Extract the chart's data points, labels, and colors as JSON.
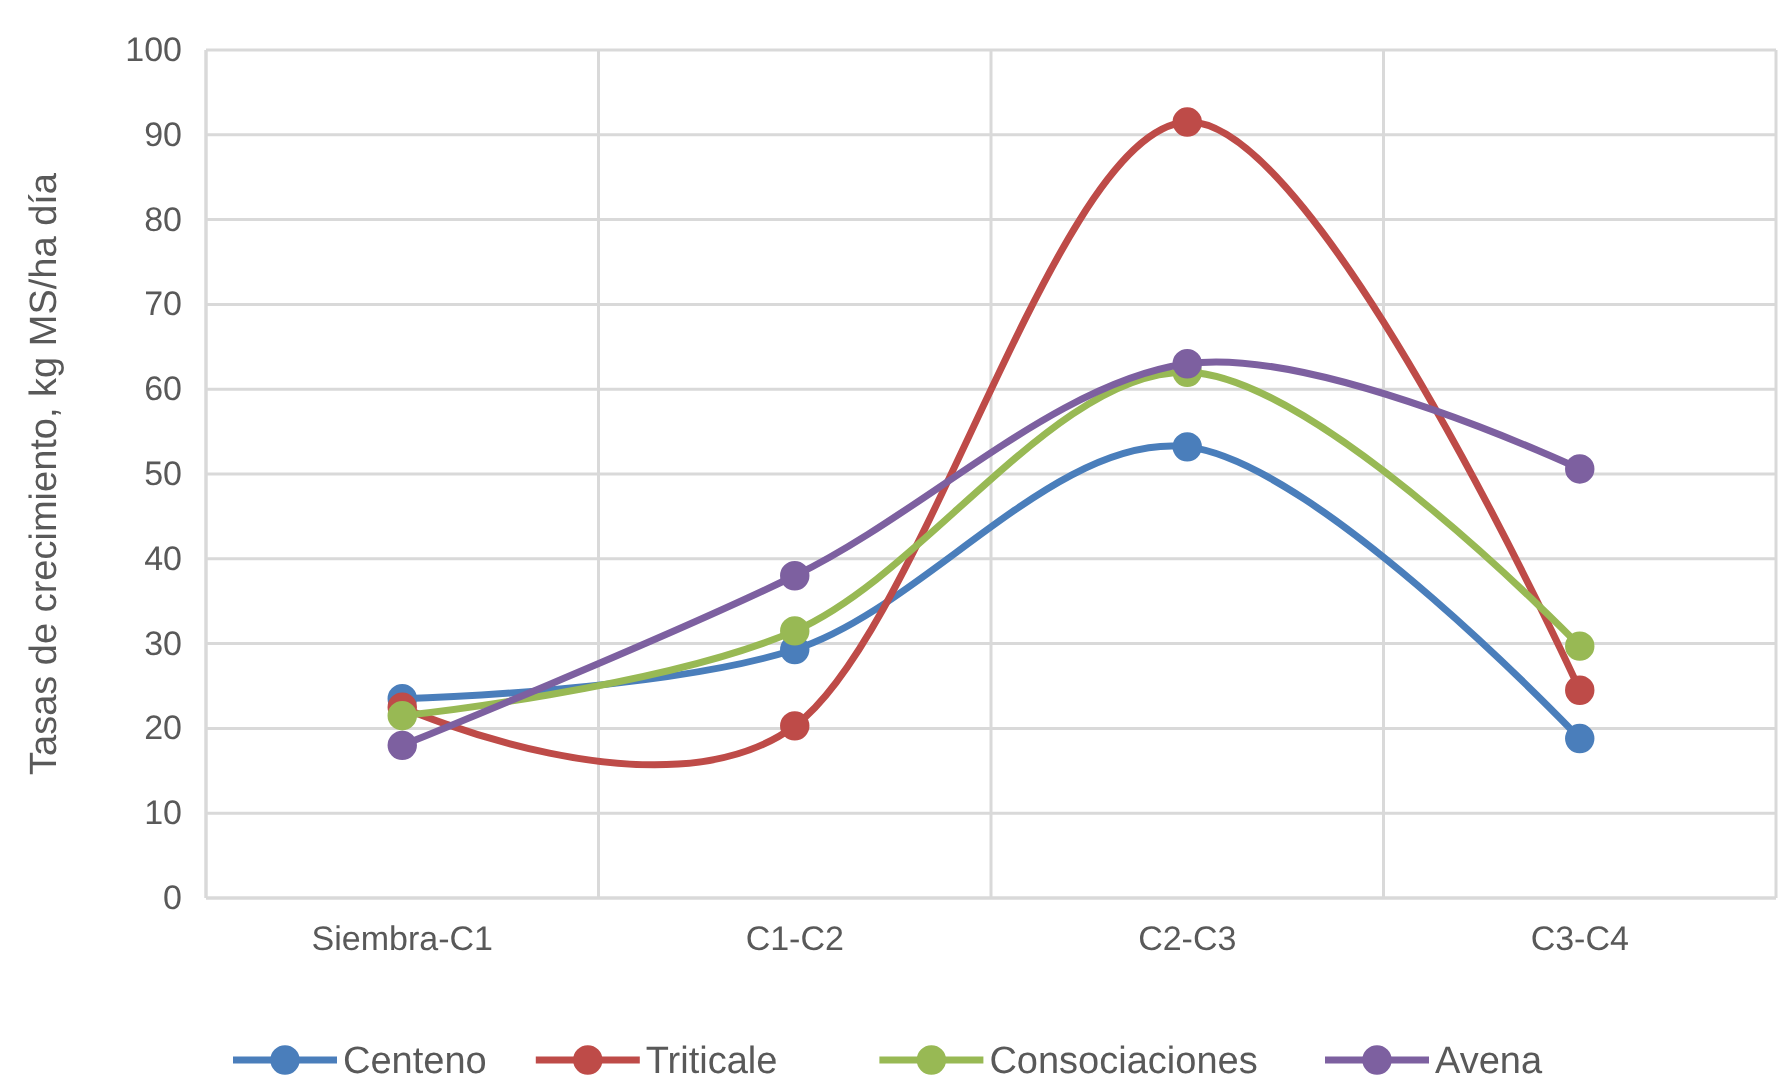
{
  "chart_data": {
    "type": "line",
    "ylabel": "Tasas de crecimiento, kg MS/ha día",
    "categories": [
      "Siembra-C1",
      "C1-C2",
      "C2-C3",
      "C3-C4"
    ],
    "series": [
      {
        "name": "Centeno",
        "color": "#4a7ebb",
        "values": [
          23.5,
          29.3,
          53.2,
          18.8
        ]
      },
      {
        "name": "Triticale",
        "color": "#be4b48",
        "values": [
          22.5,
          20.3,
          91.5,
          24.5
        ]
      },
      {
        "name": "Consociaciones",
        "color": "#98b954",
        "values": [
          21.5,
          31.5,
          62,
          29.7
        ]
      },
      {
        "name": "Avena",
        "color": "#7d60a0",
        "values": [
          18,
          38,
          63,
          50.6
        ]
      }
    ],
    "ylim": [
      0,
      100
    ],
    "yticks": [
      0,
      10,
      20,
      30,
      40,
      50,
      60,
      70,
      80,
      90,
      100
    ],
    "grid": true,
    "legend": "bottom",
    "marker": "circle",
    "line_style": "solid"
  }
}
